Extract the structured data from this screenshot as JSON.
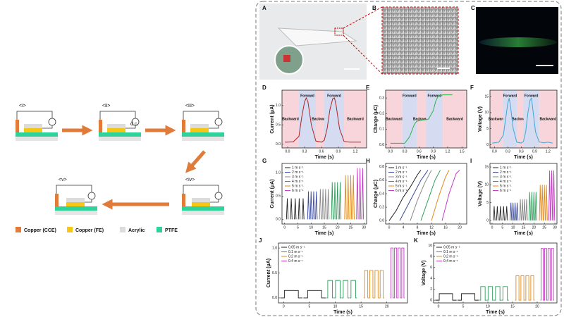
{
  "figure": {
    "steps": [
      "<i>",
      "<ii>",
      "<iii>",
      "<iv>",
      "<v>"
    ],
    "dc_label": "d.c.",
    "legend": [
      {
        "label": "Copper (CCE)",
        "color": "#e07b39"
      },
      {
        "label": "Copper (FE)",
        "color": "#f5c518"
      },
      {
        "label": "Acrylic",
        "color": "#dcdcdc"
      },
      {
        "label": "PTFE",
        "color": "#2fd39a"
      }
    ],
    "photo_labels": [
      "A",
      "B",
      "C"
    ],
    "panels": [
      {
        "label": "D",
        "type": "line",
        "xlabel": "Time (s)",
        "ylabel": "Current (μA)",
        "xlim": [
          -0.1,
          1.4
        ],
        "ylim": [
          -0.1,
          1.4
        ],
        "xticks": [
          {
            "value": 0,
            "label": "0.0"
          },
          0.3,
          0.6,
          0.9,
          1.2
        ],
        "yticks": [
          {
            "value": 0,
            "label": "0.0"
          },
          0.5,
          {
            "value": 1,
            "label": "1.0"
          }
        ],
        "regions": [
          {
            "label": "Backward",
            "range": [
              -0.1,
              0.2
            ],
            "color": "#f7d5da"
          },
          {
            "label": "Forward",
            "range": [
              0.2,
              0.5
            ],
            "color": "#d5dcf2"
          },
          {
            "label": "Backward",
            "range": [
              0.5,
              0.65
            ],
            "color": "#f7d5da"
          },
          {
            "label": "Forward",
            "range": [
              0.65,
              1.0
            ],
            "color": "#d5dcf2"
          },
          {
            "label": "Backward",
            "range": [
              1.0,
              1.4
            ],
            "color": "#f7d5da"
          }
        ],
        "series": [
          {
            "color": "#b22222",
            "x": [
              -0.05,
              0,
              0.1,
              0.2,
              0.25,
              0.3,
              0.33,
              0.36,
              0.42,
              0.5,
              0.6,
              0.65,
              0.7,
              0.75,
              0.8,
              0.83,
              0.86,
              0.92,
              1.0,
              1.1,
              1.2,
              1.3
            ],
            "values": [
              0.05,
              0.05,
              0.06,
              0.2,
              0.7,
              1.1,
              1.2,
              1.1,
              0.5,
              0.08,
              0.05,
              0.1,
              0.4,
              0.9,
              1.18,
              1.2,
              1.0,
              0.4,
              0.07,
              0.05,
              0.05,
              0.05
            ]
          }
        ]
      },
      {
        "label": "E",
        "type": "line",
        "xlabel": "Time (s)",
        "ylabel": "Charge (μC)",
        "xlim": [
          -0.1,
          1.6
        ],
        "ylim": [
          -0.02,
          0.35
        ],
        "xticks": [
          {
            "value": 0,
            "label": "0.0"
          },
          0.3,
          0.6,
          0.9,
          1.2,
          1.5
        ],
        "yticks": [
          {
            "value": 0,
            "label": "0.0"
          },
          0.1,
          0.2,
          0.3
        ],
        "regions": [
          {
            "label": "Backward",
            "range": [
              -0.1,
              0.25
            ],
            "color": "#f7d5da"
          },
          {
            "label": "Forward",
            "range": [
              0.25,
              0.55
            ],
            "color": "#d5dcf2"
          },
          {
            "label": "Backward",
            "range": [
              0.55,
              0.75
            ],
            "color": "#f7d5da"
          },
          {
            "label": "Forward",
            "range": [
              0.75,
              1.1
            ],
            "color": "#d5dcf2"
          },
          {
            "label": "Backward",
            "range": [
              1.1,
              1.6
            ],
            "color": "#f7d5da"
          }
        ],
        "series": [
          {
            "color": "#2db34a",
            "x": [
              0,
              0.3,
              0.4,
              0.5,
              0.55,
              0.6,
              0.7,
              0.8,
              0.9,
              0.95,
              1.0,
              1.1,
              1.2,
              1.3
            ],
            "values": [
              0.01,
              0.01,
              0.05,
              0.13,
              0.15,
              0.155,
              0.16,
              0.165,
              0.22,
              0.28,
              0.31,
              0.32,
              0.32,
              0.32
            ]
          }
        ]
      },
      {
        "label": "F",
        "type": "line",
        "xlabel": "Time (s)",
        "ylabel": "Voltage (V)",
        "xlim": [
          -0.1,
          1.4
        ],
        "ylim": [
          -1,
          17
        ],
        "xticks": [
          {
            "value": 0,
            "label": "0.0"
          },
          0.3,
          0.6,
          0.9,
          1.2
        ],
        "yticks": [
          0,
          5,
          10,
          15
        ],
        "regions": [
          {
            "label": "Backward",
            "range": [
              -0.1,
              0.2
            ],
            "color": "#f7d5da"
          },
          {
            "label": "Forward",
            "range": [
              0.2,
              0.5
            ],
            "color": "#d5dcf2"
          },
          {
            "label": "Backward",
            "range": [
              0.5,
              0.65
            ],
            "color": "#f7d5da"
          },
          {
            "label": "Forward",
            "range": [
              0.65,
              1.0
            ],
            "color": "#d5dcf2"
          },
          {
            "label": "Backward",
            "range": [
              1.0,
              1.4
            ],
            "color": "#f7d5da"
          }
        ],
        "series": [
          {
            "color": "#3fa7d6",
            "x": [
              -0.05,
              0,
              0.1,
              0.2,
              0.25,
              0.3,
              0.33,
              0.36,
              0.42,
              0.5,
              0.6,
              0.65,
              0.7,
              0.75,
              0.8,
              0.83,
              0.86,
              0.92,
              1.0,
              1.1,
              1.2,
              1.3
            ],
            "values": [
              0.5,
              0.6,
              0.8,
              3,
              8,
              13,
              14.5,
              12,
              5,
              0.8,
              0.5,
              1,
              4,
              10,
              14,
              14.5,
              11,
              4,
              0.9,
              0.6,
              0.8,
              0.5
            ]
          }
        ]
      },
      {
        "label": "G",
        "type": "pulse",
        "xlabel": "Time (s)",
        "ylabel": "Current (μA)",
        "xlim": [
          -1,
          31
        ],
        "ylim": [
          -0.1,
          1.2
        ],
        "xticks": [
          0,
          5,
          10,
          15,
          20,
          25,
          30
        ],
        "yticks": [
          {
            "value": 0,
            "label": "0.0"
          },
          0.5,
          {
            "value": 1,
            "label": "1.0"
          }
        ],
        "series": [
          {
            "name": "1 m s⁻¹",
            "color": "#222222",
            "x": [
              1,
              2.5,
              4,
              5.5,
              7
            ],
            "values": [
              0.45,
              0.45,
              0.45,
              0.45,
              0.45
            ]
          },
          {
            "name": "2 m s⁻¹",
            "color": "#3b4a9c",
            "x": [
              9,
              10,
              11,
              12
            ],
            "values": [
              0.6,
              0.6,
              0.6,
              0.6
            ]
          },
          {
            "name": "3 m s⁻¹",
            "color": "#888888",
            "x": [
              13.5,
              14.5,
              15.5,
              16.5
            ],
            "values": [
              0.65,
              0.65,
              0.65,
              0.65
            ]
          },
          {
            "name": "4 m s⁻¹",
            "color": "#2e9e5b",
            "x": [
              18,
              19,
              20,
              21
            ],
            "values": [
              0.8,
              0.8,
              0.8,
              0.8
            ]
          },
          {
            "name": "5 m s⁻¹",
            "color": "#e08a1e",
            "x": [
              23,
              24,
              25,
              26
            ],
            "values": [
              0.95,
              0.95,
              0.95,
              0.95
            ]
          },
          {
            "name": "6 m s⁻¹",
            "color": "#c23bc2",
            "x": [
              27.5,
              28.5,
              29.5
            ],
            "values": [
              1.1,
              1.1,
              1.1
            ]
          }
        ]
      },
      {
        "label": "H",
        "type": "line",
        "xlabel": "Time (s)",
        "ylabel": "Charge (μC)",
        "xlim": [
          -1,
          22
        ],
        "ylim": [
          -0.05,
          0.85
        ],
        "xticks": [
          0,
          4,
          8,
          12,
          16,
          20
        ],
        "yticks": [
          {
            "value": 0,
            "label": "0.0"
          },
          0.2,
          0.4,
          0.6,
          0.8
        ],
        "series": [
          {
            "name": "1 m s⁻¹",
            "color": "#222222",
            "x": [
              0,
              2,
              4,
              6,
              8,
              9
            ],
            "values": [
              0,
              0.15,
              0.35,
              0.5,
              0.68,
              0.75
            ]
          },
          {
            "name": "2 m s⁻¹",
            "color": "#3b4a9c",
            "x": [
              3,
              5,
              7,
              9,
              11
            ],
            "values": [
              0,
              0.2,
              0.4,
              0.6,
              0.75
            ]
          },
          {
            "name": "3 m s⁻¹",
            "color": "#888888",
            "x": [
              6,
              8,
              10,
              12
            ],
            "values": [
              0,
              0.3,
              0.55,
              0.75
            ]
          },
          {
            "name": "4 m s⁻¹",
            "color": "#2e9e5b",
            "x": [
              9,
              11,
              13,
              14.5
            ],
            "values": [
              0,
              0.3,
              0.6,
              0.75
            ]
          },
          {
            "name": "5 m s⁻¹",
            "color": "#e08a1e",
            "x": [
              12,
              14,
              16,
              17
            ],
            "values": [
              0,
              0.35,
              0.65,
              0.75
            ]
          },
          {
            "name": "6 m s⁻¹",
            "color": "#c23bc2",
            "x": [
              15,
              17,
              19,
              20
            ],
            "values": [
              0,
              0.4,
              0.7,
              0.75
            ]
          }
        ]
      },
      {
        "label": "I",
        "type": "pulse",
        "xlabel": "Time (s)",
        "ylabel": "Voltage (V)",
        "xlim": [
          -1,
          31
        ],
        "ylim": [
          -1,
          16
        ],
        "xticks": [
          0,
          5,
          10,
          15,
          20,
          25,
          30
        ],
        "yticks": [
          0,
          5,
          10,
          15
        ],
        "series": [
          {
            "name": "1 m s⁻¹",
            "color": "#222222",
            "x": [
              1,
              2.5,
              4,
              5.5,
              7
            ],
            "values": [
              4,
              4,
              4,
              4,
              4
            ]
          },
          {
            "name": "2 m s⁻¹",
            "color": "#3b4a9c",
            "x": [
              9,
              10,
              11,
              12
            ],
            "values": [
              5,
              5,
              5,
              5
            ]
          },
          {
            "name": "3 m s⁻¹",
            "color": "#888888",
            "x": [
              13.5,
              14.5,
              15.5,
              16.5
            ],
            "values": [
              6,
              6,
              6,
              6
            ]
          },
          {
            "name": "4 m s⁻¹",
            "color": "#2e9e5b",
            "x": [
              18,
              19,
              20,
              21
            ],
            "values": [
              8,
              8,
              8,
              8
            ]
          },
          {
            "name": "5 m s⁻¹",
            "color": "#e08a1e",
            "x": [
              23,
              24,
              25,
              26
            ],
            "values": [
              10,
              10,
              10,
              10
            ]
          },
          {
            "name": "6 m s⁻¹",
            "color": "#c23bc2",
            "x": [
              27.5,
              28.5,
              29.5
            ],
            "values": [
              14,
              14,
              14
            ]
          }
        ]
      },
      {
        "label": "J",
        "type": "square",
        "xlabel": "Time (s)",
        "ylabel": "Current (μA)",
        "xlim": [
          -1,
          24
        ],
        "ylim": [
          -0.1,
          1.1
        ],
        "xticks": [
          0,
          5,
          10,
          15,
          20
        ],
        "yticks": [
          {
            "value": 0,
            "label": "0.0"
          },
          0.5,
          {
            "value": 1,
            "label": "1.0"
          }
        ],
        "series": [
          {
            "name": "0.05 m s⁻¹",
            "color": "#222222",
            "x": [
              1.5,
              6
            ],
            "values": [
              0.15,
              0.15
            ]
          },
          {
            "name": "0.1   m s⁻¹",
            "color": "#2e9e5b",
            "x": [
              9,
              10.5,
              12,
              13.5
            ],
            "values": [
              0.35,
              0.35,
              0.35,
              0.35
            ]
          },
          {
            "name": "0.2   m s⁻¹",
            "color": "#e08a1e",
            "x": [
              16,
              17,
              18,
              19
            ],
            "values": [
              0.55,
              0.55,
              0.55,
              0.55
            ]
          },
          {
            "name": "0.4   m s⁻¹",
            "color": "#c23bc2",
            "x": [
              21,
              21.7,
              22.4,
              23.1
            ],
            "values": [
              1,
              1,
              1,
              1
            ]
          }
        ]
      },
      {
        "label": "K",
        "type": "square",
        "xlabel": "Time (s)",
        "ylabel": "Voltage (V)",
        "xlim": [
          -1,
          24
        ],
        "ylim": [
          -0.5,
          10.5
        ],
        "xticks": [
          0,
          5,
          10,
          15,
          20
        ],
        "yticks": [
          0,
          2,
          4,
          6,
          8,
          10
        ],
        "series": [
          {
            "name": "0.05 m s⁻¹",
            "color": "#222222",
            "x": [
              1.5,
              6
            ],
            "values": [
              1.2,
              1.2
            ]
          },
          {
            "name": "0.1   m s⁻¹",
            "color": "#2e9e5b",
            "x": [
              9,
              10.5,
              12,
              13.5
            ],
            "values": [
              2.5,
              2.5,
              2.5,
              2.5
            ]
          },
          {
            "name": "0.2   m s⁻¹",
            "color": "#e08a1e",
            "x": [
              16,
              17,
              18,
              19
            ],
            "values": [
              4.5,
              4.5,
              4.5,
              4.5
            ]
          },
          {
            "name": "0.4   m s⁻¹",
            "color": "#c23bc2",
            "x": [
              21,
              21.7,
              22.4,
              23.1
            ],
            "values": [
              9.5,
              9.5,
              9.5,
              9.5
            ]
          }
        ]
      }
    ]
  }
}
